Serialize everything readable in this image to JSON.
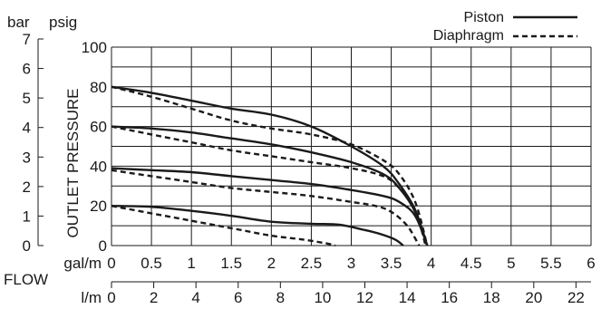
{
  "chart_data": {
    "type": "line",
    "left_axis_unit": "bar",
    "right_axis_unit": "psig",
    "ylabel": "OUTLET PRESSURE",
    "xlabel": "FLOW",
    "x_unit_primary": "gal/m",
    "x_unit_secondary": "l/m",
    "xlim": [
      0,
      6
    ],
    "ylim": [
      0,
      100
    ],
    "bar_ticks": [
      "0",
      "1",
      "2",
      "3",
      "4",
      "5",
      "6",
      "7"
    ],
    "psig_ticks": [
      "0",
      "20",
      "40",
      "60",
      "80",
      "100"
    ],
    "gpm_ticks": [
      "0",
      "0.5",
      "1",
      "1.5",
      "2",
      "2.5",
      "3",
      "3.5",
      "4",
      "4.5",
      "5",
      "5.5",
      "6"
    ],
    "lpm_ticks": [
      "0",
      "2",
      "4",
      "6",
      "8",
      "10",
      "12",
      "14",
      "16",
      "18",
      "20",
      "22"
    ],
    "grid": true,
    "legend_position": "top-right",
    "legend": [
      {
        "label": "Piston",
        "style": "solid"
      },
      {
        "label": "Diaphragm",
        "style": "dashed"
      }
    ],
    "series": [
      {
        "style": "solid",
        "x": [
          0,
          0.5,
          1,
          1.5,
          2,
          2.5,
          3,
          3.4,
          3.6,
          3.8,
          3.95
        ],
        "y": [
          80,
          77,
          73,
          69,
          66,
          60,
          50,
          40,
          31,
          18,
          0
        ]
      },
      {
        "style": "solid",
        "x": [
          0,
          0.5,
          1,
          1.5,
          2,
          2.5,
          3,
          3.4,
          3.6,
          3.8,
          3.95
        ],
        "y": [
          60,
          59,
          57,
          54,
          51,
          47,
          42,
          36,
          29,
          17,
          0
        ]
      },
      {
        "style": "solid",
        "x": [
          0,
          0.5,
          1,
          1.5,
          2,
          2.5,
          3,
          3.4,
          3.6,
          3.8,
          3.95
        ],
        "y": [
          39,
          38,
          37,
          35,
          33,
          31,
          28,
          25,
          22,
          15,
          0
        ]
      },
      {
        "style": "solid",
        "x": [
          0,
          0.5,
          1,
          1.5,
          2,
          2.5,
          2.85,
          3.15,
          3.35,
          3.55,
          3.65
        ],
        "y": [
          20,
          19.5,
          17.5,
          15,
          12,
          11,
          10.5,
          8,
          6,
          3,
          0
        ]
      },
      {
        "style": "dashed",
        "x": [
          0,
          0.5,
          1,
          1.5,
          2,
          2.5,
          3,
          3.4,
          3.6,
          3.8,
          3.95
        ],
        "y": [
          80,
          75,
          69,
          63,
          59,
          56,
          51,
          43,
          36,
          22,
          0
        ]
      },
      {
        "style": "dashed",
        "x": [
          0,
          0.5,
          1,
          1.5,
          2,
          2.5,
          3,
          3.4,
          3.6,
          3.8,
          3.93
        ],
        "y": [
          60,
          56,
          52,
          48,
          45,
          42,
          39,
          35,
          29,
          18,
          0
        ]
      },
      {
        "style": "dashed",
        "x": [
          0,
          0.5,
          1,
          1.5,
          2,
          2.5,
          3,
          3.3,
          3.5,
          3.7,
          3.85
        ],
        "y": [
          38,
          35,
          32,
          29,
          27,
          25,
          22,
          20,
          17,
          10,
          0
        ]
      },
      {
        "style": "dashed",
        "x": [
          0,
          0.4,
          0.8,
          1.2,
          1.6,
          2,
          2.4,
          2.7,
          2.8
        ],
        "y": [
          20,
          17,
          14,
          11,
          8,
          5,
          3,
          1,
          0
        ]
      }
    ]
  }
}
